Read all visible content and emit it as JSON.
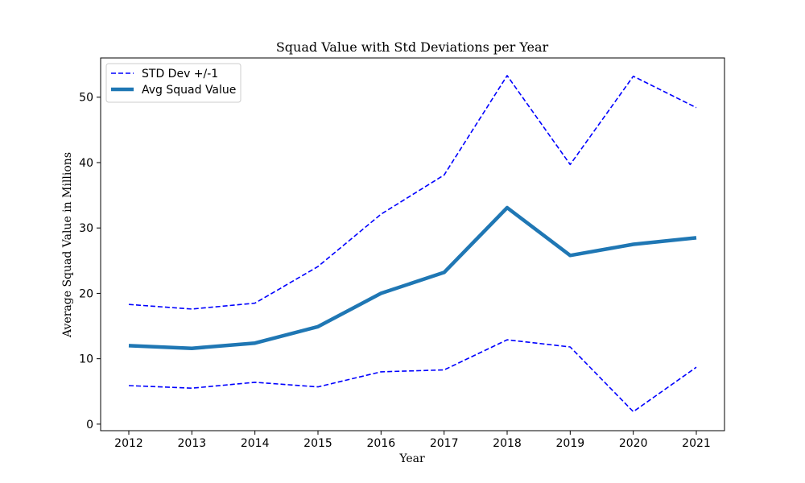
{
  "chart_data": {
    "type": "line",
    "title": "Squad Value with Std Deviations per Year",
    "xlabel": "Year",
    "ylabel": "Average Squad Value in Millions",
    "x": [
      "2012",
      "2013",
      "2014",
      "2015",
      "2016",
      "2017",
      "2018",
      "2019",
      "2020",
      "2021"
    ],
    "yticks": [
      0,
      10,
      20,
      30,
      40,
      50
    ],
    "ylim": [
      -1,
      56
    ],
    "grid": false,
    "legend_position": "top-left",
    "legend_entries": [
      "STD Dev +/-1",
      "Avg Squad Value"
    ],
    "series": [
      {
        "name": "Avg Squad Value",
        "style": "solid",
        "color": "#1f77b4",
        "values": [
          12.0,
          11.6,
          12.4,
          14.9,
          20.0,
          23.2,
          33.1,
          25.8,
          27.5,
          28.5
        ]
      },
      {
        "name": "STD Dev +/-1",
        "style": "dashed",
        "color": "#0000ff",
        "values": [
          18.3,
          17.6,
          18.5,
          24.1,
          32.1,
          38.1,
          53.3,
          39.7,
          53.2,
          48.4
        ]
      },
      {
        "name": "STD Dev +/-1",
        "style": "dashed",
        "color": "#0000ff",
        "values": [
          5.9,
          5.5,
          6.4,
          5.7,
          8.0,
          8.3,
          12.9,
          11.8,
          1.9,
          8.7
        ]
      }
    ]
  }
}
